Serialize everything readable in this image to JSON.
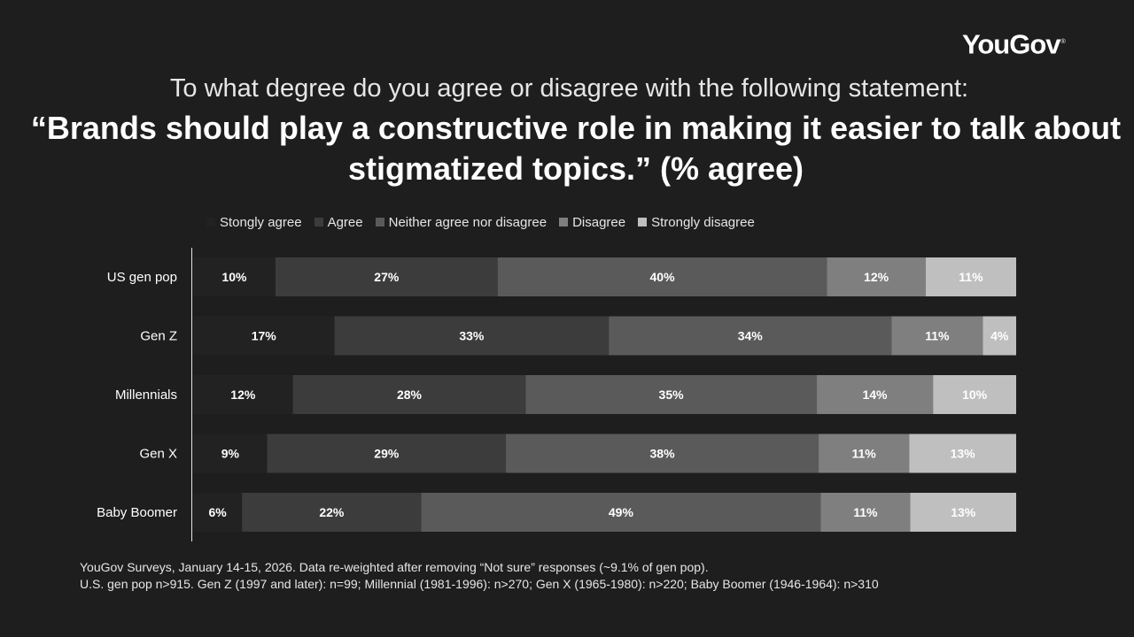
{
  "logo": {
    "text": "YouGov",
    "mark": "®"
  },
  "header": {
    "title": "To what degree do you agree or disagree with the following statement:",
    "subtitle": "“Brands should play a constructive role in making it easier to talk about stigmatized topics.” (% agree)"
  },
  "chart_data": {
    "type": "bar",
    "orientation": "horizontal",
    "stacked": true,
    "categories": [
      "US gen pop",
      "Gen Z",
      "Millennials",
      "Gen X",
      "Baby Boomer"
    ],
    "series": [
      {
        "name": "Stongly agree",
        "color": "#222222",
        "values": [
          10,
          17,
          12,
          9,
          6
        ]
      },
      {
        "name": "Agree",
        "color": "#3c3c3c",
        "values": [
          27,
          33,
          28,
          29,
          22
        ]
      },
      {
        "name": "Neither agree nor disagree",
        "color": "#5a5a5a",
        "values": [
          40,
          34,
          35,
          38,
          49
        ]
      },
      {
        "name": "Disagree",
        "color": "#7f7f7f",
        "values": [
          12,
          11,
          14,
          11,
          11
        ]
      },
      {
        "name": "Strongly disagree",
        "color": "#bfbfbf",
        "values": [
          11,
          4,
          10,
          13,
          13
        ]
      }
    ],
    "value_suffix": "%",
    "legend_position": "top",
    "grid": false
  },
  "footnote": {
    "line1": "YouGov Surveys, January 14-15, 2026. Data re-weighted after removing “Not sure” responses (~9.1% of gen pop).",
    "line2": "U.S. gen pop n>915. Gen Z (1997 and later): n=99; Millennial (1981-1996): n>270; Gen X (1965-1980): n>220; Baby Boomer (1946-1964): n>310"
  }
}
